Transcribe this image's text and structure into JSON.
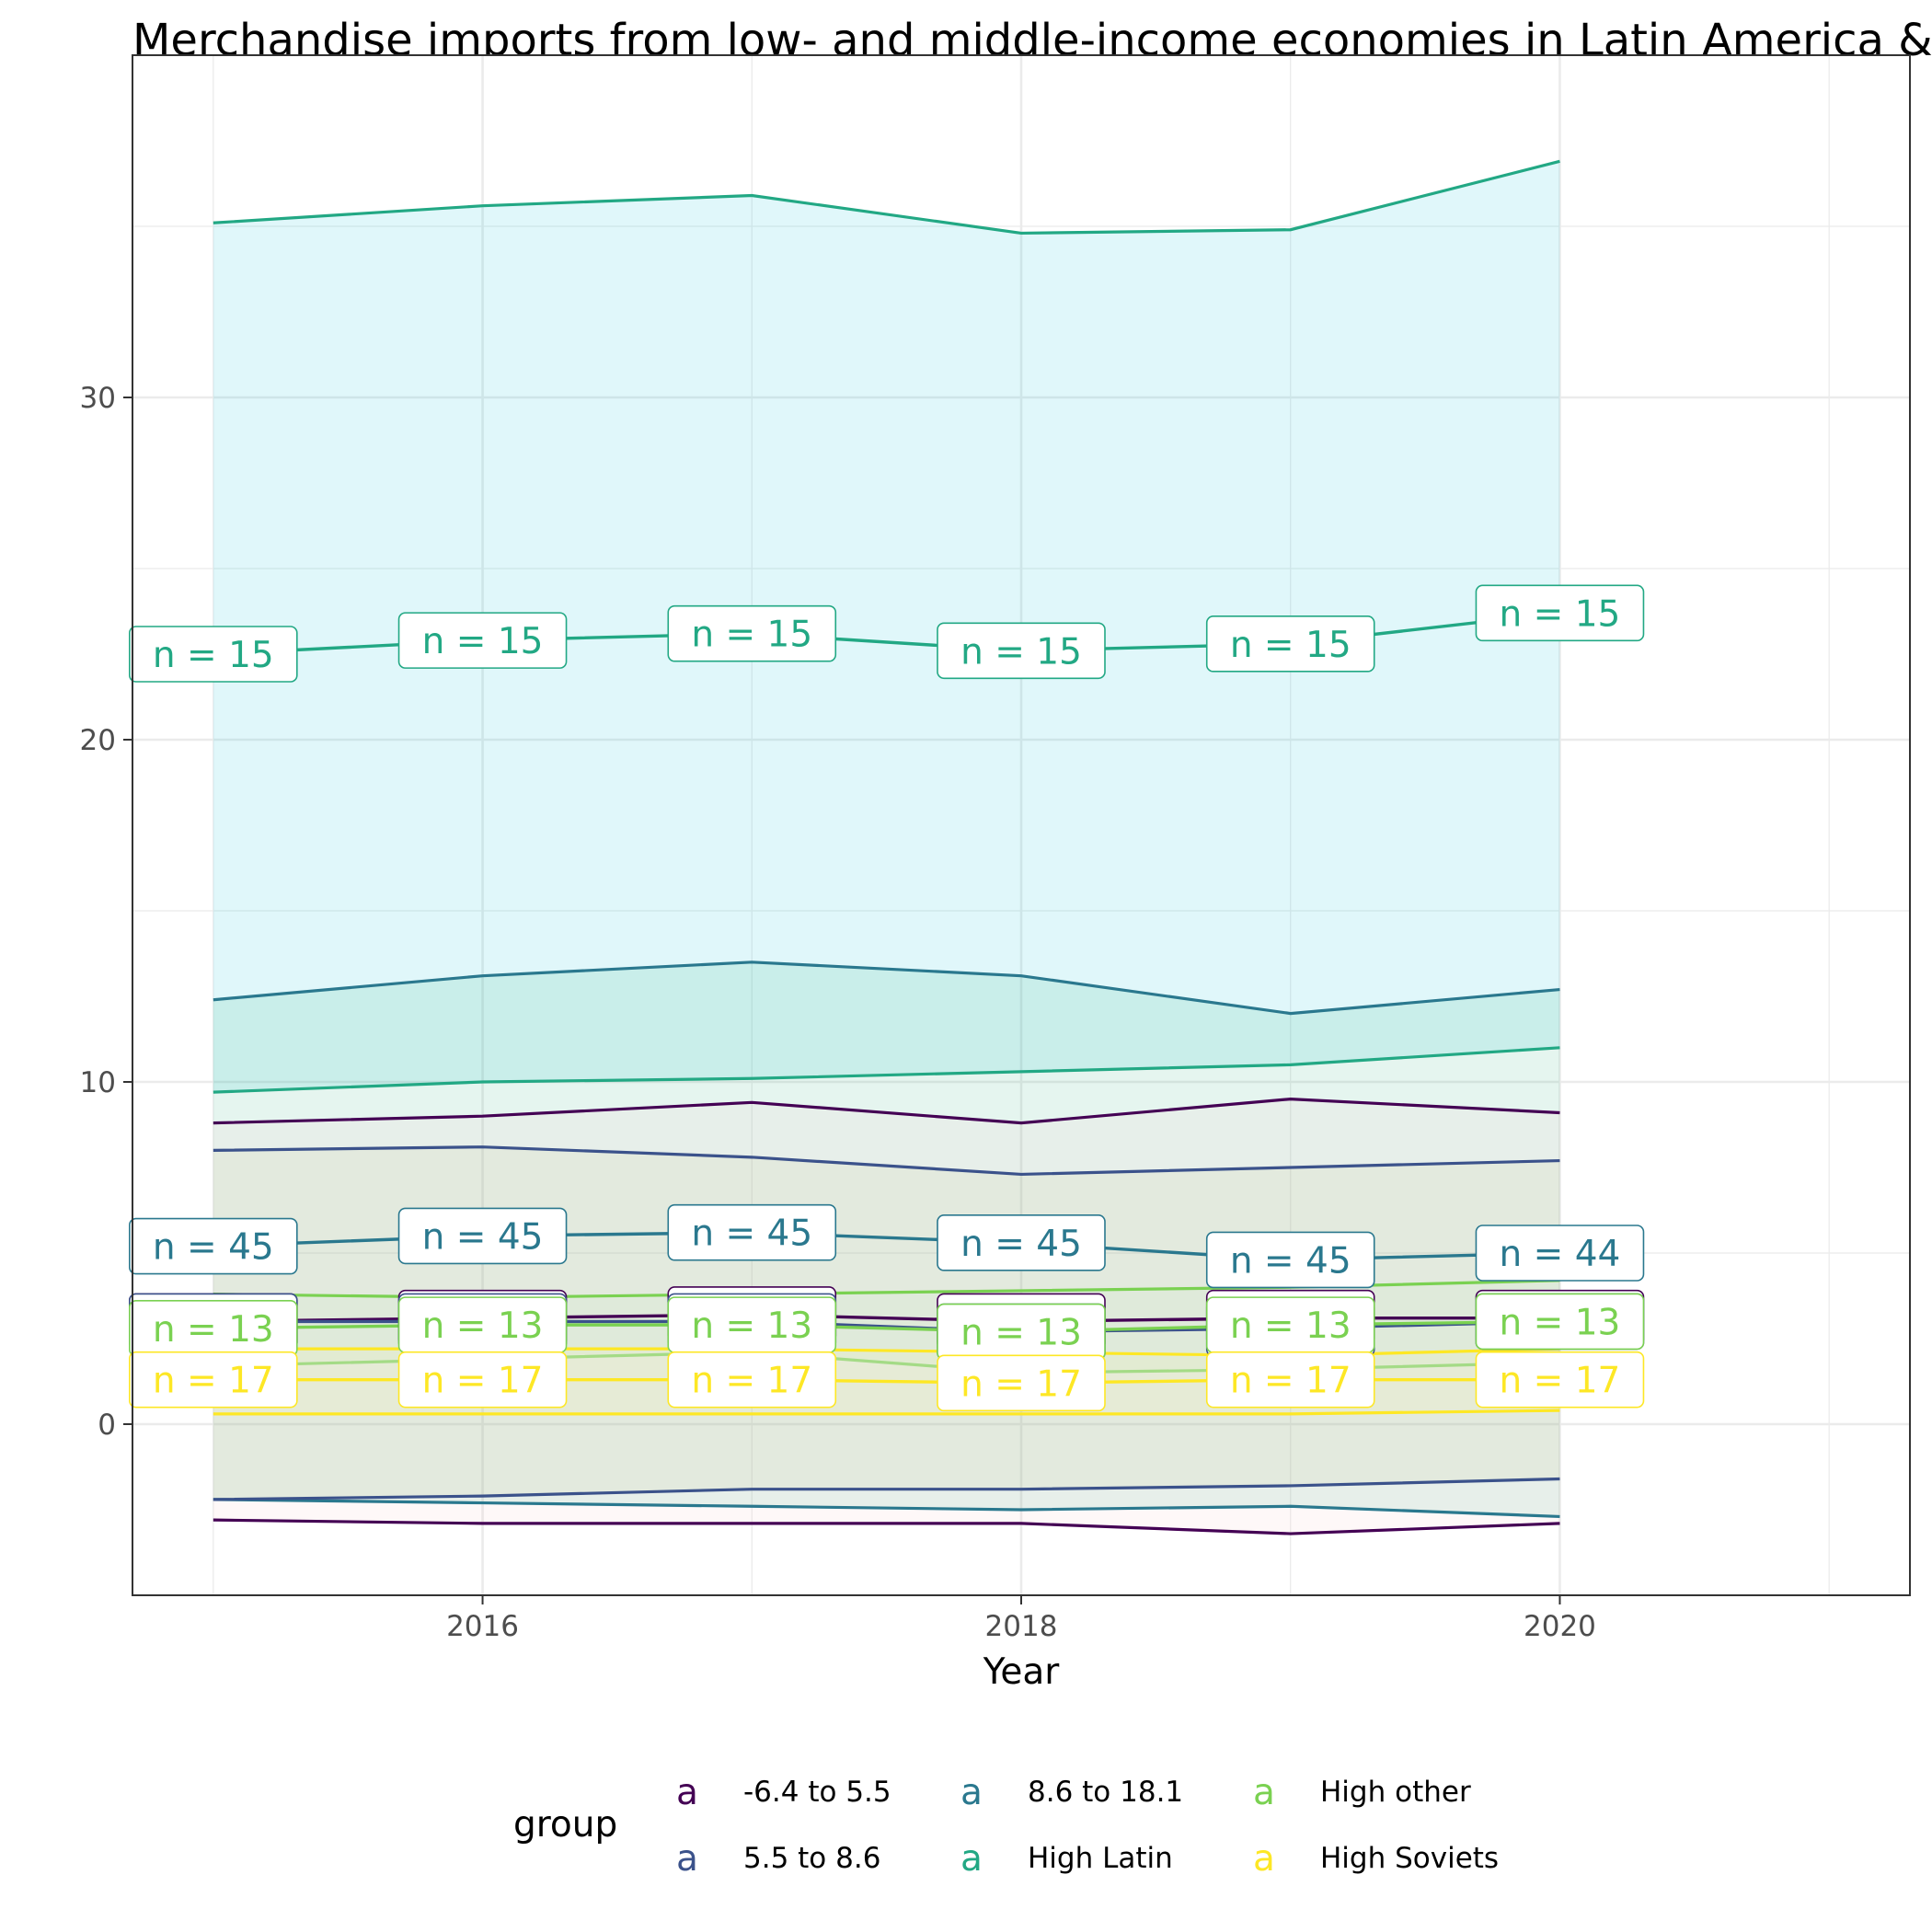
{
  "chart_data": {
    "type": "line",
    "title": "Merchandise imports from low- and middle-income economies in Latin America & Caribbean (% of total merchandise imports)",
    "xlabel": "Year",
    "ylabel": "",
    "x": [
      2015,
      2016,
      2017,
      2018,
      2019,
      2020
    ],
    "xlim": [
      2014.7,
      2021.3
    ],
    "ylim": [
      -5,
      40
    ],
    "x_ticks": [
      2016,
      2018,
      2020
    ],
    "x_tick_labels": [
      "2016",
      "2018",
      "2020"
    ],
    "y_ticks": [
      0,
      10,
      20,
      30
    ],
    "y_tick_labels": [
      "0",
      "10",
      "20",
      "30"
    ],
    "grid": true,
    "legend": {
      "title": "group",
      "position": "bottom",
      "key_glyph": "a"
    },
    "series": [
      {
        "name": "High Latin",
        "color": "#22a884",
        "fill": "#00bcd4",
        "mean": [
          22.5,
          22.9,
          23.1,
          22.6,
          22.8,
          23.7
        ],
        "upper": [
          35.1,
          35.6,
          35.9,
          34.8,
          34.9,
          36.9
        ],
        "lower": [
          9.7,
          10.0,
          10.1,
          10.3,
          10.5,
          11.0
        ],
        "labels": [
          "n = 15",
          "n = 15",
          "n = 15",
          "n = 15",
          "n = 15",
          "n = 15"
        ]
      },
      {
        "name": "8.6 to 18.1",
        "color": "#2a788e",
        "fill": "#29af7f",
        "mean": [
          5.2,
          5.5,
          5.6,
          5.3,
          4.8,
          5.0
        ],
        "upper": [
          12.4,
          13.1,
          13.5,
          13.1,
          12.0,
          12.7
        ],
        "lower": [
          -2.2,
          -2.3,
          -2.4,
          -2.5,
          -2.4,
          -2.7
        ],
        "labels": [
          "n = 45",
          "n = 45",
          "n = 45",
          "n = 45",
          "n = 45",
          "n = 44"
        ]
      },
      {
        "name": "-6.4 to 5.5",
        "color": "#440154",
        "fill": "#f5c6c6",
        "mean": [
          3.0,
          3.1,
          3.2,
          3.0,
          3.1,
          3.1
        ],
        "upper": [
          8.8,
          9.0,
          9.4,
          8.8,
          9.5,
          9.1
        ],
        "lower": [
          -2.8,
          -2.9,
          -2.9,
          -2.9,
          -3.2,
          -2.9
        ],
        "labels": [
          "",
          "",
          "",
          "",
          "",
          ""
        ]
      },
      {
        "name": "5.5 to 8.6",
        "color": "#3b528b",
        "fill": "#c9c68e",
        "mean": [
          3.0,
          3.0,
          3.0,
          2.7,
          2.8,
          3.0
        ],
        "upper": [
          8.0,
          8.1,
          7.8,
          7.3,
          7.5,
          7.7
        ],
        "lower": [
          -2.2,
          -2.1,
          -1.9,
          -1.9,
          -1.8,
          -1.6
        ],
        "labels": [
          "",
          "",
          "",
          "",
          "",
          ""
        ]
      },
      {
        "name": "High other",
        "color": "#7ad151",
        "fill": "#c6efc0",
        "mean": [
          2.8,
          2.9,
          2.9,
          2.7,
          2.9,
          3.0
        ],
        "upper": [
          3.8,
          3.7,
          3.8,
          3.9,
          4.0,
          4.2
        ],
        "lower": [
          1.7,
          1.9,
          2.1,
          1.5,
          1.6,
          1.8
        ],
        "labels": [
          "n = 13",
          "n = 13",
          "n = 13",
          "n = 13",
          "n = 13",
          "n = 13"
        ]
      },
      {
        "name": "High Soviets",
        "color": "#fde725",
        "fill": "#fff59d",
        "mean": [
          1.3,
          1.3,
          1.3,
          1.2,
          1.3,
          1.3
        ],
        "upper": [
          2.2,
          2.2,
          2.2,
          2.1,
          2.0,
          2.2
        ],
        "lower": [
          0.3,
          0.3,
          0.3,
          0.3,
          0.3,
          0.4
        ],
        "labels": [
          "n = 17",
          "n = 17",
          "n = 17",
          "n = 17",
          "n = 17",
          "n = 17"
        ]
      }
    ]
  }
}
